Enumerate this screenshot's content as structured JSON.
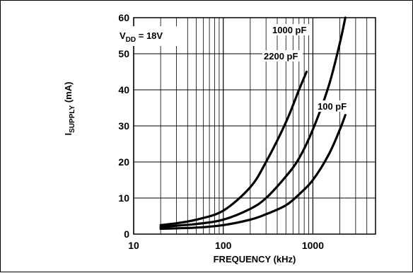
{
  "chart_data": {
    "type": "line",
    "title": "",
    "xlabel": "FREQUENCY (kHz)",
    "ylabel": {
      "main": "I",
      "sub": "SUPPLY",
      "unit": " (mA)"
    },
    "xscale": "log",
    "xlim": [
      10,
      5000
    ],
    "ylim": [
      0,
      60
    ],
    "grid": true,
    "x_tick_labels": [
      {
        "value": 10,
        "label": "10"
      },
      {
        "value": 100,
        "label": "100"
      },
      {
        "value": 1000,
        "label": "1000"
      }
    ],
    "y_tick_labels": [
      {
        "value": 0,
        "label": "0"
      },
      {
        "value": 10,
        "label": "10"
      },
      {
        "value": 20,
        "label": "20"
      },
      {
        "value": 30,
        "label": "30"
      },
      {
        "value": 40,
        "label": "40"
      },
      {
        "value": 50,
        "label": "50"
      },
      {
        "value": 60,
        "label": "60"
      }
    ],
    "condition": {
      "main": "V",
      "sub": "DD",
      "rest": " = 18V"
    },
    "series": [
      {
        "name": "2200 pF",
        "x": [
          20,
          30,
          50,
          100,
          200,
          300,
          500,
          700,
          850
        ],
        "y": [
          2.5,
          3,
          4,
          6.5,
          13,
          20,
          31,
          40,
          45
        ]
      },
      {
        "name": "1000 pF",
        "x": [
          20,
          50,
          100,
          200,
          300,
          500,
          700,
          1000,
          1500,
          2000,
          2300
        ],
        "y": [
          2,
          2.8,
          4,
          7,
          10,
          16,
          21,
          29,
          41,
          53,
          60
        ]
      },
      {
        "name": "100 pF",
        "x": [
          20,
          50,
          100,
          200,
          300,
          500,
          700,
          1000,
          1500,
          2000,
          2300
        ],
        "y": [
          1.5,
          1.8,
          2.5,
          4,
          5.5,
          8,
          11,
          15,
          22,
          29,
          33
        ]
      }
    ]
  }
}
